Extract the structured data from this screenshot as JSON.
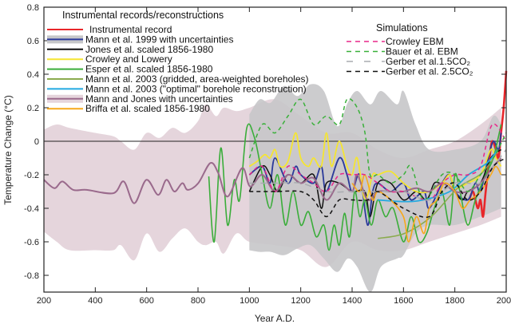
{
  "chart_data": {
    "type": "line",
    "xlabel": "Year A.D.",
    "ylabel": "Temperature Change (°C)",
    "xlim": [
      200,
      2000
    ],
    "ylim": [
      -0.9,
      0.8
    ],
    "xticks": [
      200,
      400,
      600,
      800,
      1000,
      1200,
      1400,
      1600,
      1800,
      2000
    ],
    "yticks": [
      0.8,
      0.6,
      0.4,
      0.2,
      0,
      -0.2,
      -0.4,
      -0.6,
      -0.8
    ],
    "ytick_labels": [
      "0.8",
      "0.6",
      "0.4",
      "0.2",
      "0",
      "-0.2",
      "-0.4",
      "-0.6",
      "-0.8"
    ],
    "zero_line": true,
    "legend_reconstructions_title": "Instrumental records/reconstructions",
    "legend_simulations_title": "Simulations",
    "bands": [
      {
        "name": "Mann and Jones with uncertainties",
        "color": "#e5d5dc",
        "x": [
          200,
          250,
          300,
          400,
          470,
          500,
          552,
          600,
          650,
          700,
          750,
          800,
          830,
          870,
          900,
          950,
          1000,
          1100,
          1200,
          1300,
          1400,
          1500,
          1600,
          1700,
          1800,
          1900,
          1980
        ],
        "upper": [
          0.07,
          0.1,
          0.08,
          0.05,
          0.03,
          0.0,
          -0.05,
          0.05,
          0.02,
          0.08,
          0.05,
          0.12,
          0.22,
          0.15,
          0.2,
          0.18,
          0.2,
          0.25,
          0.15,
          0.05,
          0.05,
          -0.05,
          -0.1,
          -0.05,
          0.0,
          0.1,
          0.2
        ],
        "lower": [
          -0.54,
          -0.6,
          -0.65,
          -0.65,
          -0.65,
          -0.62,
          -0.71,
          -0.55,
          -0.66,
          -0.58,
          -0.52,
          -0.6,
          -0.62,
          -0.6,
          -0.67,
          -0.55,
          -0.6,
          -0.62,
          -0.65,
          -0.75,
          -0.6,
          -0.65,
          -0.65,
          -0.6,
          -0.55,
          -0.5,
          -0.45
        ]
      },
      {
        "name": "Mann et al. 1999 with uncertainties",
        "color": "#c6c7c9",
        "x": [
          1000,
          1040,
          1083,
          1135,
          1187,
          1238,
          1290,
          1342,
          1383,
          1420,
          1471,
          1512,
          1575,
          1600,
          1647,
          1700,
          1800,
          1900,
          1950,
          1980
        ],
        "upper": [
          0.16,
          0.25,
          0.23,
          0.33,
          0.27,
          0.34,
          0.3,
          0.09,
          0.23,
          0.3,
          0.22,
          0.3,
          0.22,
          0.3,
          0.1,
          -0.05,
          -0.05,
          0.0,
          0.15,
          0.1
        ],
        "lower": [
          -0.65,
          -0.66,
          -0.66,
          -0.68,
          -0.64,
          -0.62,
          -0.7,
          -0.78,
          -0.7,
          -0.75,
          -0.9,
          -0.75,
          -0.7,
          -0.68,
          -0.55,
          -0.5,
          -0.5,
          -0.45,
          -0.42,
          -0.4
        ]
      }
    ],
    "series": [
      {
        "name": "Instrumental record",
        "group": "reconstructions",
        "color": "#e8262a",
        "dash": "",
        "width": 2.6,
        "x": [
          1856,
          1870,
          1880,
          1890,
          1900,
          1910,
          1920,
          1935,
          1945,
          1960,
          1970,
          1980,
          1990,
          2000
        ],
        "y": [
          -0.35,
          -0.3,
          -0.35,
          -0.4,
          -0.35,
          -0.45,
          -0.3,
          -0.1,
          0.0,
          -0.05,
          -0.1,
          0.05,
          0.2,
          0.42
        ]
      },
      {
        "name": "Mann et al. 1999 with uncertainties",
        "group": "reconstructions",
        "color": "#2b3a9a",
        "dash": "",
        "width": 1.8,
        "x": [
          1000,
          1050,
          1080,
          1100,
          1150,
          1180,
          1200,
          1250,
          1280,
          1300,
          1350,
          1380,
          1400,
          1430,
          1460,
          1480,
          1500,
          1550,
          1600,
          1630,
          1680,
          1700,
          1750,
          1780,
          1800,
          1850,
          1880,
          1900,
          1930,
          1950,
          1970,
          1980
        ],
        "y": [
          -0.2,
          -0.15,
          -0.25,
          -0.1,
          -0.25,
          -0.15,
          -0.2,
          -0.25,
          -0.15,
          -0.3,
          -0.1,
          -0.2,
          -0.3,
          -0.2,
          -0.5,
          -0.3,
          -0.25,
          -0.3,
          -0.25,
          -0.35,
          -0.3,
          -0.4,
          -0.25,
          -0.2,
          -0.3,
          -0.35,
          -0.25,
          -0.3,
          -0.1,
          0.0,
          -0.05,
          0.05
        ]
      },
      {
        "name": "Jones et al. scaled 1856-1980",
        "group": "reconstructions",
        "color": "#111111",
        "dash": "",
        "width": 1.5,
        "x": [
          1000,
          1050,
          1080,
          1110,
          1150,
          1200,
          1250,
          1280,
          1300,
          1350,
          1400,
          1450,
          1470,
          1500,
          1550,
          1600,
          1650,
          1690,
          1720,
          1750,
          1780,
          1800,
          1830,
          1850,
          1900,
          1940,
          1980
        ],
        "y": [
          -0.3,
          -0.15,
          -0.2,
          -0.3,
          -0.2,
          -0.25,
          -0.2,
          -0.4,
          -0.25,
          -0.25,
          -0.3,
          -0.3,
          -0.45,
          -0.25,
          -0.25,
          -0.35,
          -0.3,
          -0.35,
          -0.25,
          -0.25,
          -0.2,
          -0.3,
          -0.35,
          -0.3,
          -0.25,
          -0.1,
          -0.05
        ]
      },
      {
        "name": "Crowley and Lowery",
        "group": "reconstructions",
        "color": "#f5e531",
        "dash": "",
        "width": 1.8,
        "x": [
          1000,
          1030,
          1060,
          1080,
          1100,
          1120,
          1150,
          1180,
          1200,
          1230,
          1250,
          1280,
          1300,
          1320,
          1350,
          1380,
          1400,
          1420,
          1450,
          1480,
          1500,
          1550,
          1600,
          1650,
          1700,
          1750,
          1780,
          1800,
          1850,
          1900,
          1940,
          1960,
          1980
        ],
        "y": [
          -0.15,
          -0.12,
          -0.08,
          -0.1,
          -0.05,
          -0.15,
          -0.12,
          0.05,
          -0.1,
          -0.15,
          -0.1,
          -0.15,
          0.05,
          -0.15,
          0.0,
          -0.15,
          -0.2,
          -0.1,
          -0.35,
          -0.2,
          -0.2,
          -0.18,
          -0.25,
          -0.3,
          -0.3,
          -0.25,
          -0.2,
          -0.28,
          -0.25,
          -0.2,
          -0.05,
          -0.1,
          -0.15
        ]
      },
      {
        "name": "Esper et al. scaled 1856-1980",
        "group": "reconstructions",
        "color": "#3aad3a",
        "dash": "",
        "width": 1.6,
        "x": [
          842,
          863,
          889,
          915,
          941,
          962,
          990,
          1020,
          1050,
          1080,
          1110,
          1140,
          1170,
          1200,
          1230,
          1260,
          1290,
          1310,
          1330,
          1350,
          1370,
          1390,
          1410,
          1430,
          1450,
          1475,
          1500,
          1530,
          1560,
          1600,
          1630,
          1660,
          1690,
          1720,
          1750,
          1780,
          1800,
          1820,
          1850,
          1880,
          1920,
          1950,
          1980
        ],
        "y": [
          -0.21,
          -0.6,
          -0.04,
          -0.5,
          -0.23,
          -0.35,
          0.08,
          0.02,
          -0.2,
          -0.4,
          -0.2,
          -0.5,
          -0.3,
          -0.5,
          -0.42,
          -0.57,
          -0.5,
          -0.65,
          -0.5,
          -0.62,
          -0.43,
          -0.57,
          -0.3,
          -0.45,
          -0.35,
          -0.5,
          -0.35,
          -0.45,
          -0.4,
          -0.6,
          -0.45,
          -0.6,
          -0.55,
          -0.4,
          -0.3,
          -0.5,
          -0.2,
          -0.3,
          -0.5,
          -0.35,
          -0.2,
          -0.1,
          0.1
        ]
      },
      {
        "name": "Mann et al. 2003 (gridded, area-weighted boreholes)",
        "group": "reconstructions",
        "color": "#8aab4e",
        "dash": "",
        "width": 1.5,
        "x": [
          1500,
          1604,
          1708,
          1811,
          1905,
          1967
        ],
        "y": [
          -0.58,
          -0.55,
          -0.45,
          -0.28,
          -0.19,
          -0.06
        ]
      },
      {
        "name": "Mann et al. 2003 (\"optimal\" borehole reconstruction)",
        "group": "reconstructions",
        "color": "#22a9e1",
        "dash": "",
        "width": 1.8,
        "x": [
          1500,
          1600,
          1677,
          1780,
          1853,
          1925,
          1967
        ],
        "y": [
          -0.35,
          -0.36,
          -0.35,
          -0.3,
          -0.2,
          -0.13,
          -0.05
        ]
      },
      {
        "name": "Mann and Jones with uncertainties",
        "group": "reconstructions",
        "color": "#9a6a8c",
        "dash": "",
        "width": 2,
        "x": [
          200,
          241,
          272,
          314,
          366,
          470,
          511,
          552,
          599,
          645,
          677,
          708,
          739,
          760,
          801,
          848,
          879,
          915,
          972,
          1003,
          1050,
          1100,
          1150,
          1200,
          1250,
          1300,
          1350,
          1400,
          1420,
          1460,
          1500,
          1550,
          1600,
          1650,
          1700,
          1750,
          1800,
          1850,
          1900,
          1950,
          1980
        ],
        "y": [
          -0.23,
          -0.28,
          -0.24,
          -0.29,
          -0.29,
          -0.31,
          -0.24,
          -0.37,
          -0.23,
          -0.32,
          -0.23,
          -0.3,
          -0.25,
          -0.29,
          -0.25,
          -0.13,
          -0.19,
          -0.33,
          -0.16,
          -0.27,
          -0.2,
          -0.3,
          -0.2,
          -0.25,
          -0.22,
          -0.35,
          -0.25,
          -0.3,
          -0.2,
          -0.35,
          -0.3,
          -0.3,
          -0.3,
          -0.28,
          -0.3,
          -0.25,
          -0.3,
          -0.3,
          -0.25,
          -0.15,
          -0.1
        ]
      },
      {
        "name": "Briffa et al. scaled 1856-1980",
        "group": "reconstructions",
        "color": "#f7a81b",
        "dash": "",
        "width": 1.6,
        "x": [
          1400,
          1430,
          1450,
          1480,
          1500,
          1550,
          1600,
          1620,
          1650,
          1680,
          1700,
          1730,
          1760,
          1800,
          1830,
          1860,
          1900,
          1940,
          1960,
          1980
        ],
        "y": [
          -0.25,
          -0.3,
          -0.2,
          -0.35,
          -0.3,
          -0.35,
          -0.45,
          -0.6,
          -0.45,
          -0.55,
          -0.4,
          -0.35,
          -0.25,
          -0.3,
          -0.4,
          -0.35,
          -0.3,
          -0.2,
          -0.15,
          -0.2
        ]
      },
      {
        "name": "Crowley EBM",
        "group": "simulations",
        "color": "#e8268a",
        "dash": "5,4",
        "width": 1.5,
        "x": [
          1000,
          1050,
          1100,
          1150,
          1200,
          1250,
          1300,
          1350,
          1400,
          1450,
          1500,
          1550,
          1600,
          1700,
          1750,
          1800,
          1850,
          1900,
          1946,
          2000
        ],
        "y": [
          -0.2,
          -0.15,
          -0.3,
          -0.15,
          -0.2,
          -0.25,
          -0.3,
          -0.2,
          -0.2,
          -0.2,
          -0.25,
          -0.3,
          -0.3,
          -0.35,
          -0.25,
          -0.2,
          -0.2,
          -0.15,
          0.1,
          0.0
        ]
      },
      {
        "name": "Bauer et al. EBM",
        "group": "simulations",
        "color": "#3ab03a",
        "dash": "5,4",
        "width": 1.5,
        "x": [
          1000,
          1050,
          1100,
          1150,
          1200,
          1250,
          1300,
          1350,
          1380,
          1420,
          1450,
          1470,
          1500,
          1550,
          1600,
          1630,
          1680,
          1750,
          1800,
          1850,
          1900,
          1950,
          2000
        ],
        "y": [
          -0.1,
          0.1,
          0.05,
          0.15,
          0.25,
          0.1,
          0.15,
          0.1,
          0.25,
          0.2,
          0.05,
          -0.2,
          -0.2,
          -0.25,
          -0.2,
          -0.15,
          -0.35,
          -0.2,
          -0.2,
          -0.3,
          -0.2,
          -0.1,
          0.05
        ]
      },
      {
        "name": "Gerber et al.1.5CO₂",
        "group": "simulations",
        "color": "#a8abb0",
        "dash": "8,6",
        "width": 1.5,
        "x": [
          1000,
          1100,
          1200,
          1300,
          1400,
          1500,
          1600,
          1700,
          1800,
          1900,
          1950,
          2000
        ],
        "y": [
          -0.25,
          -0.25,
          -0.25,
          -0.3,
          -0.3,
          -0.3,
          -0.3,
          -0.35,
          -0.25,
          -0.25,
          -0.15,
          -0.05
        ]
      },
      {
        "name": "Gerber et al. 2.5CO₂",
        "group": "simulations",
        "color": "#111111",
        "dash": "5,4",
        "width": 1.5,
        "x": [
          1000,
          1100,
          1200,
          1250,
          1300,
          1350,
          1400,
          1460,
          1500,
          1600,
          1700,
          1750,
          1800,
          1850,
          1900,
          1950,
          2000
        ],
        "y": [
          -0.3,
          -0.3,
          -0.3,
          -0.35,
          -0.45,
          -0.35,
          -0.35,
          -0.35,
          -0.3,
          -0.4,
          -0.45,
          -0.3,
          -0.25,
          -0.35,
          -0.3,
          -0.15,
          -0.1
        ]
      }
    ]
  }
}
